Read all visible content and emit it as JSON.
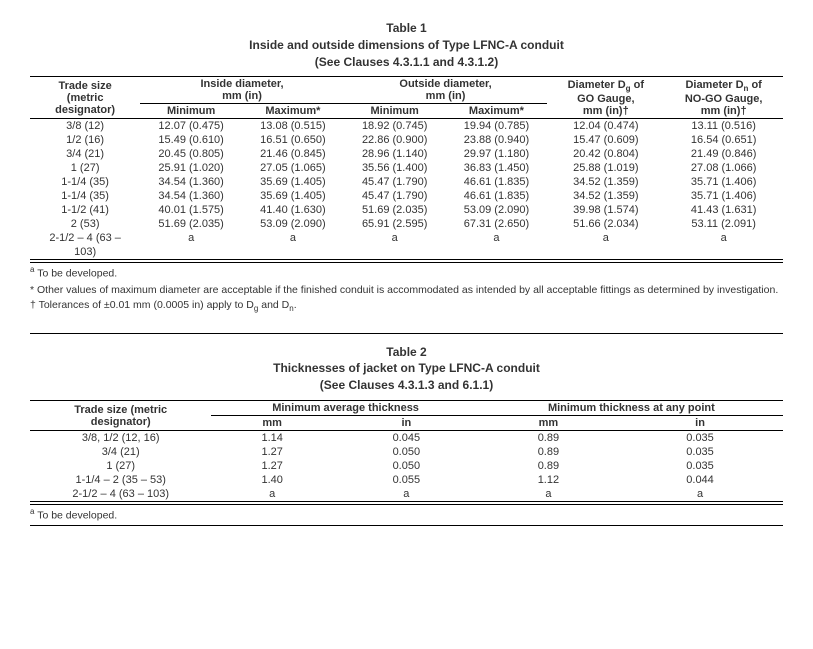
{
  "table1": {
    "title_l1": "Table 1",
    "title_l2": "Inside and outside dimensions of Type LFNC-A conduit",
    "title_l3": "(See Clauses 4.3.1.1 and 4.3.1.2)",
    "head": {
      "trade_l1": "Trade size",
      "trade_l2": "(metric",
      "trade_l3": "designator)",
      "inside_l1": "Inside diameter,",
      "inside_l2": "mm (in)",
      "outside_l1": "Outside diameter,",
      "outside_l2": "mm (in)",
      "dg_l1": "Diameter D",
      "dg_sub": "g",
      "dg_l1b": " of",
      "dg_l2": "GO Gauge,",
      "dg_l3": "mm (in)†",
      "dn_l1": "Diameter D",
      "dn_sub": "n",
      "dn_l1b": " of",
      "dn_l2": "NO-GO Gauge,",
      "dn_l3": "mm (in)†",
      "min": "Minimum",
      "max": "Maximum*"
    },
    "rows": [
      {
        "ts": "3/8 (12)",
        "imin": "12.07 (0.475)",
        "imax": "13.08 (0.515)",
        "omin": "18.92 (0.745)",
        "omax": "19.94 (0.785)",
        "dg": "12.04 (0.474)",
        "dn": "13.11 (0.516)"
      },
      {
        "ts": "1/2 (16)",
        "imin": "15.49 (0.610)",
        "imax": "16.51 (0.650)",
        "omin": "22.86 (0.900)",
        "omax": "23.88 (0.940)",
        "dg": "15.47 (0.609)",
        "dn": "16.54 (0.651)"
      },
      {
        "ts": "3/4 (21)",
        "imin": "20.45 (0.805)",
        "imax": "21.46 (0.845)",
        "omin": "28.96 (1.140)",
        "omax": "29.97 (1.180)",
        "dg": "20.42 (0.804)",
        "dn": "21.49 (0.846)"
      },
      {
        "ts": "1 (27)",
        "imin": "25.91 (1.020)",
        "imax": "27.05 (1.065)",
        "omin": "35.56 (1.400)",
        "omax": "36.83 (1.450)",
        "dg": "25.88 (1.019)",
        "dn": "27.08 (1.066)"
      },
      {
        "ts": "1-1/4 (35)",
        "imin": "34.54 (1.360)",
        "imax": "35.69 (1.405)",
        "omin": "45.47 (1.790)",
        "omax": "46.61 (1.835)",
        "dg": "34.52 (1.359)",
        "dn": "35.71 (1.406)"
      },
      {
        "ts": "1-1/4 (35)",
        "imin": "34.54 (1.360)",
        "imax": "35.69 (1.405)",
        "omin": "45.47 (1.790)",
        "omax": "46.61 (1.835)",
        "dg": "34.52 (1.359)",
        "dn": "35.71 (1.406)"
      },
      {
        "ts": "1-1/2 (41)",
        "imin": "40.01 (1.575)",
        "imax": "41.40 (1.630)",
        "omin": "51.69 (2.035)",
        "omax": "53.09 (2.090)",
        "dg": "39.98 (1.574)",
        "dn": "41.43 (1.631)"
      },
      {
        "ts": "2 (53)",
        "imin": "51.69 (2.035)",
        "imax": "53.09 (2.090)",
        "omin": "65.91 (2.595)",
        "omax": "67.31 (2.650)",
        "dg": "51.66 (2.034)",
        "dn": "53.11 (2.091)"
      },
      {
        "ts": "2-1/2 – 4 (63 –",
        "imin": "a",
        "imax": "a",
        "omin": "a",
        "omax": "a",
        "dg": "a",
        "dn": "a"
      },
      {
        "ts": "103)",
        "imin": "",
        "imax": "",
        "omin": "",
        "omax": "",
        "dg": "",
        "dn": ""
      }
    ],
    "footnotes": {
      "a": "a To be developed.",
      "star": "* Other values of maximum diameter are acceptable if the finished conduit is accommodated as intended by all acceptable fittings as determined by investigation.",
      "dagger_pre": "† Tolerances of ±0.01 mm (0.0005 in) apply to D",
      "dagger_g": "g",
      "dagger_mid": " and D",
      "dagger_n": "n",
      "dagger_post": "."
    }
  },
  "table2": {
    "title_l1": "Table 2",
    "title_l2": "Thicknesses of jacket on Type LFNC-A conduit",
    "title_l3": "(See Clauses 4.3.1.3 and 6.1.1)",
    "head": {
      "trade_l1": "Trade size (metric",
      "trade_l2": "designator)",
      "minavg": "Minimum average thickness",
      "minpt": "Minimum thickness at any point",
      "mm": "mm",
      "in": "in"
    },
    "rows": [
      {
        "ts": "3/8, 1/2 (12, 16)",
        "amm": "1.14",
        "ain": "0.045",
        "pmm": "0.89",
        "pin": "0.035"
      },
      {
        "ts": "3/4 (21)",
        "amm": "1.27",
        "ain": "0.050",
        "pmm": "0.89",
        "pin": "0.035"
      },
      {
        "ts": "1 (27)",
        "amm": "1.27",
        "ain": "0.050",
        "pmm": "0.89",
        "pin": "0.035"
      },
      {
        "ts": "1-1/4 – 2 (35 – 53)",
        "amm": "1.40",
        "ain": "0.055",
        "pmm": "1.12",
        "pin": "0.044"
      },
      {
        "ts": "2-1/2 – 4 (63 – 103)",
        "amm": "a",
        "ain": "a",
        "pmm": "a",
        "pin": "a"
      }
    ],
    "footnotes": {
      "a": "a To be developed."
    }
  }
}
